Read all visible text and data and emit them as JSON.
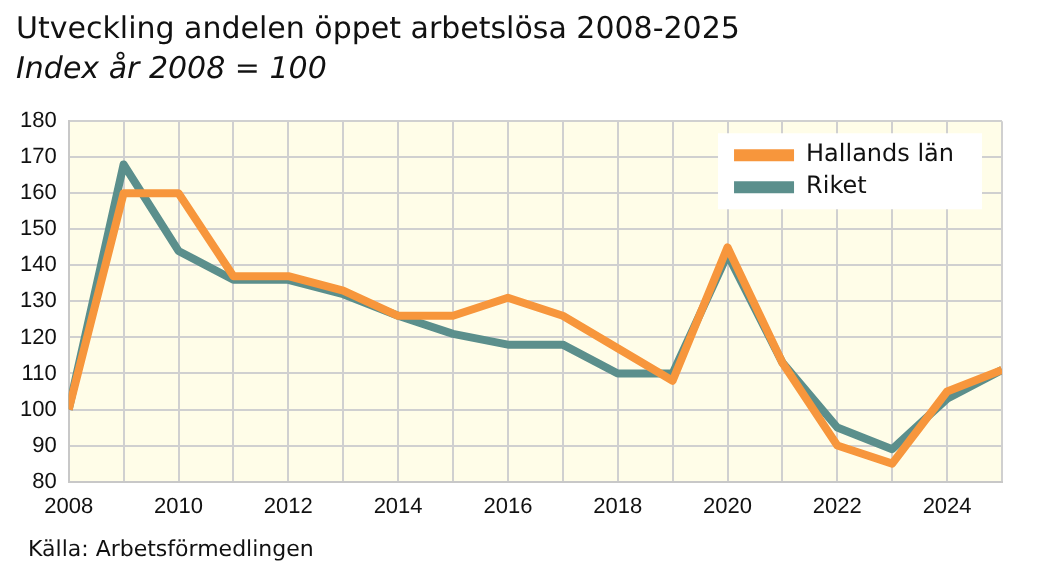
{
  "chart_data": {
    "type": "line",
    "title": "Utveckling andelen öppet arbetslösa 2008-2025",
    "subtitle": "Index år 2008 = 100",
    "x": [
      2008,
      2009,
      2010,
      2011,
      2012,
      2013,
      2014,
      2015,
      2016,
      2017,
      2018,
      2019,
      2020,
      2021,
      2022,
      2023,
      2024,
      2025
    ],
    "series": [
      {
        "name": "Hallands län",
        "color": "#f7963c",
        "values": [
          100,
          160,
          160,
          137,
          137,
          133,
          126,
          126,
          131,
          126,
          117,
          108,
          145,
          113,
          90,
          85,
          105,
          111
        ]
      },
      {
        "name": "Riket",
        "color": "#5b8f8c",
        "values": [
          100,
          168,
          144,
          136,
          136,
          132,
          126,
          121,
          118,
          118,
          110,
          110,
          143,
          113,
          95,
          89,
          103,
          111
        ]
      }
    ],
    "xlim": [
      2008,
      2025
    ],
    "xticks": [
      2008,
      {
        "value": 2009,
        "label": null
      },
      2010,
      {
        "value": 2011,
        "label": null
      },
      2012,
      {
        "value": 2013,
        "label": null
      },
      2014,
      {
        "value": 2015,
        "label": null
      },
      2016,
      {
        "value": 2017,
        "label": null
      },
      2018,
      {
        "value": 2019,
        "label": null
      },
      2020,
      {
        "value": 2021,
        "label": null
      },
      2022,
      {
        "value": 2023,
        "label": null
      },
      2024,
      {
        "value": 2025,
        "label": null
      }
    ],
    "ylim": [
      80,
      180
    ],
    "yticks": [
      80,
      90,
      100,
      110,
      120,
      130,
      140,
      150,
      160,
      170,
      180
    ],
    "grid": true,
    "legend": "top right",
    "marker": "none",
    "line_style": "solid",
    "annotations": [
      "Källa: Arbetsförmedlingen"
    ]
  }
}
